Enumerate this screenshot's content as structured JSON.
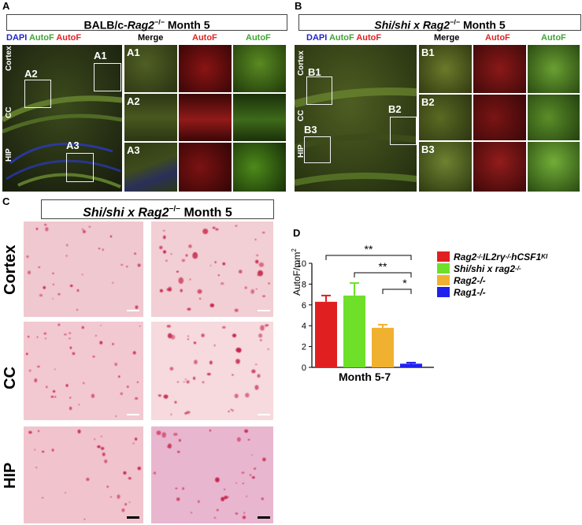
{
  "panels": {
    "A": {
      "letter": "A",
      "title_prefix": "BALB/c-",
      "title_gene": "Rag2",
      "title_sup": "−/−",
      "title_suffix": " Month 5",
      "legend_dapi": "DAPI",
      "legend_autof_green": "AutoF",
      "legend_autof_red": "AutoF",
      "region_cortex": "Cortex",
      "region_cc": "CC",
      "region_hip": "HIP",
      "roi": [
        "A1",
        "A2",
        "A3"
      ],
      "col_headers": [
        "Merge",
        "AutoF",
        "AutoF"
      ],
      "row_labels": [
        "A1",
        "A2",
        "A3"
      ]
    },
    "B": {
      "letter": "B",
      "title_gene": "Shi/shi x Rag2",
      "title_sup": "−/−",
      "title_suffix": " Month 5",
      "legend_dapi": "DAPI",
      "legend_autof_green": "AutoF",
      "legend_autof_red": "AutoF",
      "region_cortex": "Cortex",
      "region_cc": "CC",
      "region_hip": "HIP",
      "roi": [
        "B1",
        "B2",
        "B3"
      ],
      "col_headers": [
        "Merge",
        "AutoF",
        "AutoF"
      ],
      "row_labels": [
        "B1",
        "B2",
        "B3"
      ]
    },
    "C": {
      "letter": "C",
      "title_gene": "Shi/shi x Rag2",
      "title_sup": "−/−",
      "title_suffix": " Month 5",
      "row_labels": [
        "Cortex",
        "CC",
        "HIP"
      ]
    },
    "D": {
      "letter": "D"
    }
  },
  "colors": {
    "autof_green": "#3fa535",
    "autof_red": "#e02424",
    "dapi_blue": "#1f1fd0"
  },
  "chart_data": {
    "type": "bar",
    "categories": [
      "Rag2-/- IL2rγ-/- hCSF1KI",
      "Shi/shi x rag2-/-",
      "Rag2-/-",
      "Rag1-/-"
    ],
    "values": [
      6.3,
      6.9,
      3.8,
      0.35
    ],
    "errors": [
      0.6,
      1.2,
      0.3,
      0.1
    ],
    "colors": [
      "#e02020",
      "#6ee02a",
      "#f0b030",
      "#2020ee"
    ],
    "xlabel": "Month 5-7",
    "ylabel": "AutoF/mm",
    "ylabel_sup": "2",
    "ylim": [
      0,
      10
    ],
    "yticks": [
      "0",
      "2",
      "4",
      "6",
      "8",
      "10"
    ],
    "legend": [
      {
        "name": "Rag2",
        "sup": "-/-",
        "rest": " IL2rγ",
        "sup2": "-/-",
        "rest2": " hCSF1",
        "sup3": "KI"
      },
      {
        "name": "Shi/shi x rag2",
        "sup": "-/-"
      },
      {
        "name": "Rag2-/-"
      },
      {
        "name": "Rag1-/-"
      }
    ],
    "significance": [
      {
        "from": 0,
        "to": 3,
        "label": "**"
      },
      {
        "from": 1,
        "to": 3,
        "label": "**"
      },
      {
        "from": 2,
        "to": 3,
        "label": "*"
      }
    ]
  }
}
